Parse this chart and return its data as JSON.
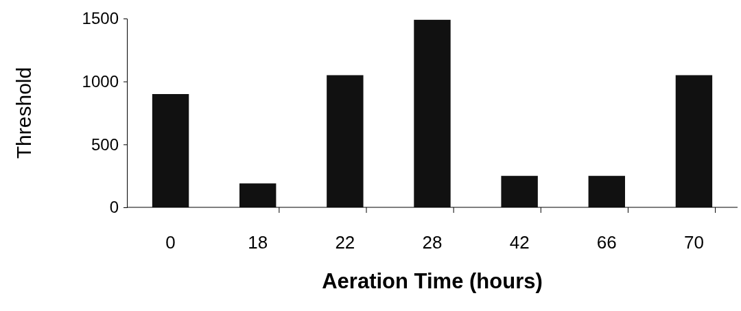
{
  "chart_data": {
    "type": "bar",
    "xlabel": "Aeration Time (hours)",
    "ylabel": "Threshold",
    "categories": [
      "0",
      "18",
      "22",
      "28",
      "42",
      "66",
      "70"
    ],
    "values": [
      900,
      190,
      1050,
      1490,
      250,
      250,
      1050
    ],
    "color": "#111111",
    "ylim": [
      0,
      1500
    ],
    "yticks": [
      0,
      500,
      1000,
      1500
    ],
    "grid": false
  }
}
